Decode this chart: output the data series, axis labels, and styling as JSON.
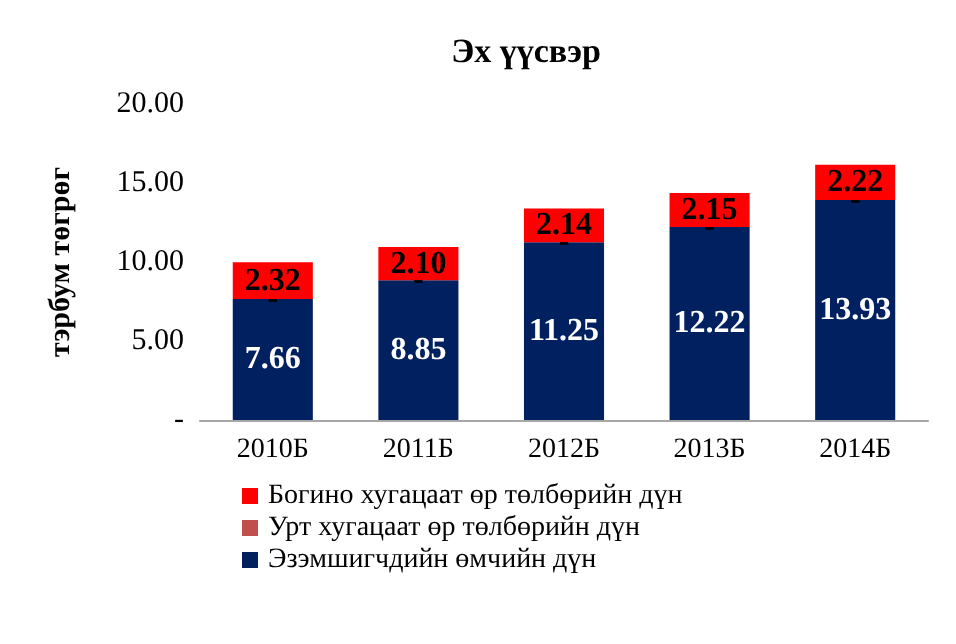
{
  "chart_data": {
    "type": "bar",
    "title": "Эх үүсвэр",
    "ylabel": "тэрбум төгрөг",
    "categories": [
      "2010Б",
      "2011Б",
      "2012Б",
      "2013Б",
      "2014Б"
    ],
    "stacked": true,
    "series": [
      {
        "name": "Эзэмшигчдийн өмчийн дүн",
        "color": "#002060",
        "values": [
          7.66,
          8.85,
          11.25,
          12.22,
          13.93
        ],
        "value_labels": [
          "7.66",
          "8.85",
          "11.25",
          "12.22",
          "13.93"
        ]
      },
      {
        "name": "Урт хугацаат өр төлбөрийн дүн",
        "color": "#c0504d",
        "values": [
          0,
          0,
          0,
          0,
          0
        ],
        "value_labels": [
          "-",
          "-",
          "-",
          "-",
          "-"
        ]
      },
      {
        "name": "Богино хугацаат өр төлбөрийн дүн",
        "color": "#ff0000",
        "values": [
          2.32,
          2.1,
          2.14,
          2.15,
          2.22
        ],
        "value_labels": [
          "2.32",
          "2.10",
          "2.14",
          "2.15",
          "2.22"
        ]
      }
    ],
    "ylim": [
      0,
      20
    ],
    "yticks": [
      {
        "value": 0,
        "label": "-"
      },
      {
        "value": 5,
        "label": "5.00"
      },
      {
        "value": 10,
        "label": "10.00"
      },
      {
        "value": 15,
        "label": "15.00"
      },
      {
        "value": 20,
        "label": "20.00"
      }
    ],
    "grid": false,
    "legend": "bottom"
  }
}
